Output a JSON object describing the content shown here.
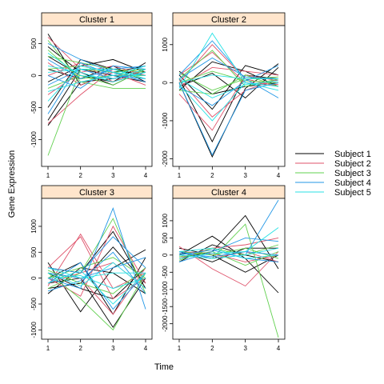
{
  "chart_data": {
    "type": "line",
    "xlabel": "Time",
    "ylabel": "Gene Expression",
    "strip_color": "#ffe5cc",
    "legend": {
      "placement": "right",
      "entries": [
        {
          "name": "Subject 1",
          "color": "#000000"
        },
        {
          "name": "Subject 2",
          "color": "#df536b"
        },
        {
          "name": "Subject 3",
          "color": "#61d04f"
        },
        {
          "name": "Subject 4",
          "color": "#2297e6"
        },
        {
          "name": "Subject 5",
          "color": "#28e2e5"
        }
      ]
    },
    "panels": [
      {
        "title": "Cluster 1",
        "xticks": [
          "1",
          "2",
          "3",
          "4"
        ],
        "yticks": [
          -1000,
          -500,
          0,
          500
        ],
        "ylim": [
          -1420,
          780
        ],
        "lines": [
          {
            "subject": 1,
            "values": [
              650,
              -150,
              50,
              150
            ]
          },
          {
            "subject": 1,
            "values": [
              -700,
              100,
              0,
              -100
            ]
          },
          {
            "subject": 1,
            "values": [
              -100,
              150,
              250,
              50
            ]
          },
          {
            "subject": 1,
            "values": [
              300,
              0,
              -100,
              200
            ]
          },
          {
            "subject": 1,
            "values": [
              -500,
              250,
              100,
              0
            ]
          },
          {
            "subject": 1,
            "values": [
              100,
              -50,
              150,
              -100
            ]
          },
          {
            "subject": 1,
            "values": [
              -780,
              -100,
              -50,
              50
            ]
          },
          {
            "subject": 1,
            "values": [
              450,
              50,
              -150,
              100
            ]
          },
          {
            "subject": 2,
            "values": [
              -750,
              -300,
              100,
              50
            ]
          },
          {
            "subject": 2,
            "values": [
              600,
              100,
              -50,
              100
            ]
          },
          {
            "subject": 2,
            "values": [
              200,
              -150,
              50,
              -150
            ]
          },
          {
            "subject": 2,
            "values": [
              -300,
              50,
              150,
              0
            ]
          },
          {
            "subject": 2,
            "values": [
              0,
              200,
              -100,
              100
            ]
          },
          {
            "subject": 3,
            "values": [
              -1250,
              100,
              50,
              100
            ]
          },
          {
            "subject": 3,
            "values": [
              550,
              -100,
              -200,
              -200
            ]
          },
          {
            "subject": 3,
            "values": [
              300,
              200,
              100,
              50
            ]
          },
          {
            "subject": 3,
            "values": [
              -200,
              0,
              -150,
              100
            ]
          },
          {
            "subject": 3,
            "values": [
              100,
              150,
              50,
              -50
            ]
          },
          {
            "subject": 3,
            "values": [
              400,
              -50,
              0,
              0
            ]
          },
          {
            "subject": 4,
            "values": [
              -600,
              200,
              0,
              -50
            ]
          },
          {
            "subject": 4,
            "values": [
              250,
              -50,
              100,
              150
            ]
          },
          {
            "subject": 4,
            "values": [
              -150,
              100,
              -50,
              50
            ]
          },
          {
            "subject": 4,
            "values": [
              500,
              250,
              50,
              -100
            ]
          },
          {
            "subject": 4,
            "values": [
              0,
              -200,
              150,
              100
            ]
          },
          {
            "subject": 5,
            "values": [
              -400,
              150,
              50,
              0
            ]
          },
          {
            "subject": 5,
            "values": [
              350,
              0,
              -50,
              100
            ]
          },
          {
            "subject": 5,
            "values": [
              50,
              100,
              100,
              -50
            ]
          },
          {
            "subject": 5,
            "values": [
              -250,
              -100,
              0,
              150
            ]
          },
          {
            "subject": 5,
            "values": [
              150,
              50,
              -100,
              50
            ]
          }
        ]
      },
      {
        "title": "Cluster 2",
        "xticks": [
          "1",
          "2",
          "3",
          "4"
        ],
        "yticks": [
          -2000,
          -1000,
          0,
          1000
        ],
        "ylim": [
          -2200,
          1500
        ],
        "lines": [
          {
            "subject": 1,
            "values": [
              0,
              -1950,
              -150,
              500
            ]
          },
          {
            "subject": 1,
            "values": [
              100,
              -1550,
              200,
              100
            ]
          },
          {
            "subject": 1,
            "values": [
              -200,
              550,
              300,
              -100
            ]
          },
          {
            "subject": 1,
            "values": [
              200,
              -700,
              450,
              200
            ]
          },
          {
            "subject": 1,
            "values": [
              -100,
              250,
              -400,
              400
            ]
          },
          {
            "subject": 1,
            "values": [
              300,
              -300,
              -100,
              0
            ]
          },
          {
            "subject": 2,
            "values": [
              0,
              1000,
              100,
              -100
            ]
          },
          {
            "subject": 2,
            "values": [
              -300,
              -1250,
              200,
              50
            ]
          },
          {
            "subject": 2,
            "values": [
              100,
              -900,
              -200,
              100
            ]
          },
          {
            "subject": 2,
            "values": [
              200,
              800,
              0,
              -50
            ]
          },
          {
            "subject": 2,
            "values": [
              -100,
              400,
              300,
              200
            ]
          },
          {
            "subject": 3,
            "values": [
              100,
              850,
              -100,
              100
            ]
          },
          {
            "subject": 3,
            "values": [
              -200,
              -300,
              200,
              -100
            ]
          },
          {
            "subject": 3,
            "values": [
              0,
              300,
              50,
              0
            ]
          },
          {
            "subject": 3,
            "values": [
              250,
              -200,
              100,
              150
            ]
          },
          {
            "subject": 4,
            "values": [
              -100,
              -600,
              50,
              450
            ]
          },
          {
            "subject": 4,
            "values": [
              200,
              1100,
              100,
              -400
            ]
          },
          {
            "subject": 4,
            "values": [
              0,
              -1900,
              -200,
              0
            ]
          },
          {
            "subject": 4,
            "values": [
              100,
              650,
              150,
              100
            ]
          },
          {
            "subject": 5,
            "values": [
              -150,
              1300,
              0,
              -100
            ]
          },
          {
            "subject": 5,
            "values": [
              100,
              -400,
              -50,
              50
            ]
          },
          {
            "subject": 5,
            "values": [
              0,
              200,
              100,
              100
            ]
          },
          {
            "subject": 5,
            "values": [
              -50,
              -1000,
              0,
              -200
            ]
          }
        ]
      },
      {
        "title": "Cluster 3",
        "xticks": [
          "1",
          "2",
          "3",
          "4"
        ],
        "yticks": [
          -1000,
          -500,
          0,
          500,
          1000
        ],
        "ylim": [
          -1180,
          1540
        ],
        "lines": [
          {
            "subject": 1,
            "values": [
              300,
              -650,
              200,
              550
            ]
          },
          {
            "subject": 1,
            "values": [
              -100,
              0,
              -950,
              0
            ]
          },
          {
            "subject": 1,
            "values": [
              200,
              100,
              900,
              -200
            ]
          },
          {
            "subject": 1,
            "values": [
              0,
              300,
              -700,
              400
            ]
          },
          {
            "subject": 1,
            "values": [
              -200,
              -100,
              600,
              -100
            ]
          },
          {
            "subject": 1,
            "values": [
              100,
              -200,
              -400,
              200
            ]
          },
          {
            "subject": 1,
            "values": [
              -300,
              200,
              100,
              -300
            ]
          },
          {
            "subject": 2,
            "values": [
              -150,
              850,
              -200,
              100
            ]
          },
          {
            "subject": 2,
            "values": [
              200,
              800,
              -400,
              0
            ]
          },
          {
            "subject": 2,
            "values": [
              0,
              -350,
              1000,
              -100
            ]
          },
          {
            "subject": 2,
            "values": [
              100,
              0,
              -700,
              200
            ]
          },
          {
            "subject": 2,
            "values": [
              -100,
              100,
              300,
              -200
            ]
          },
          {
            "subject": 3,
            "values": [
              -200,
              100,
              1150,
              -300
            ]
          },
          {
            "subject": 3,
            "values": [
              100,
              -400,
              -1000,
              100
            ]
          },
          {
            "subject": 3,
            "values": [
              0,
              200,
              400,
              0
            ]
          },
          {
            "subject": 3,
            "values": [
              150,
              -100,
              -300,
              200
            ]
          },
          {
            "subject": 4,
            "values": [
              0,
              -200,
              1350,
              -600
            ]
          },
          {
            "subject": 4,
            "values": [
              200,
              100,
              800,
              200
            ]
          },
          {
            "subject": 4,
            "values": [
              -100,
              300,
              -600,
              100
            ]
          },
          {
            "subject": 4,
            "values": [
              100,
              0,
              200,
              400
            ]
          },
          {
            "subject": 4,
            "values": [
              -250,
              -50,
              500,
              -300
            ]
          },
          {
            "subject": 5,
            "values": [
              -100,
              150,
              -500,
              100
            ]
          },
          {
            "subject": 5,
            "values": [
              100,
              -150,
              300,
              -200
            ]
          },
          {
            "subject": 5,
            "values": [
              0,
              50,
              -200,
              0
            ]
          },
          {
            "subject": 5,
            "values": [
              200,
              0,
              100,
              100
            ]
          }
        ]
      },
      {
        "title": "Cluster 4",
        "xticks": [
          "1",
          "2",
          "3",
          "4"
        ],
        "yticks": [
          -2000,
          -1500,
          -1000,
          -500,
          0,
          500,
          1000
        ],
        "ylim": [
          -2450,
          1650
        ],
        "lines": [
          {
            "subject": 1,
            "values": [
              0,
              550,
              -100,
              -1100
            ]
          },
          {
            "subject": 1,
            "values": [
              -100,
              100,
              1150,
              -400
            ]
          },
          {
            "subject": 1,
            "values": [
              100,
              -200,
              200,
              200
            ]
          },
          {
            "subject": 1,
            "values": [
              200,
              0,
              -500,
              0
            ]
          },
          {
            "subject": 1,
            "values": [
              -200,
              300,
              0,
              -200
            ]
          },
          {
            "subject": 2,
            "values": [
              250,
              -400,
              -900,
              100
            ]
          },
          {
            "subject": 2,
            "values": [
              -100,
              200,
              300,
              500
            ]
          },
          {
            "subject": 2,
            "values": [
              0,
              -100,
              100,
              -200
            ]
          },
          {
            "subject": 2,
            "values": [
              100,
              50,
              -200,
              0
            ]
          },
          {
            "subject": 3,
            "values": [
              0,
              -100,
              900,
              -2400
            ]
          },
          {
            "subject": 3,
            "values": [
              -150,
              200,
              0,
              300
            ]
          },
          {
            "subject": 3,
            "values": [
              100,
              0,
              200,
              -100
            ]
          },
          {
            "subject": 3,
            "values": [
              -50,
              100,
              -300,
              100
            ]
          },
          {
            "subject": 4,
            "values": [
              100,
              -100,
              0,
              1600
            ]
          },
          {
            "subject": 4,
            "values": [
              -200,
              100,
              500,
              400
            ]
          },
          {
            "subject": 4,
            "values": [
              0,
              150,
              -100,
              -200
            ]
          },
          {
            "subject": 4,
            "values": [
              50,
              -50,
              100,
              0
            ]
          },
          {
            "subject": 5,
            "values": [
              -100,
              50,
              100,
              800
            ]
          },
          {
            "subject": 5,
            "values": [
              0,
              -100,
              0,
              200
            ]
          },
          {
            "subject": 5,
            "values": [
              100,
              200,
              -100,
              0
            ]
          }
        ]
      }
    ]
  }
}
